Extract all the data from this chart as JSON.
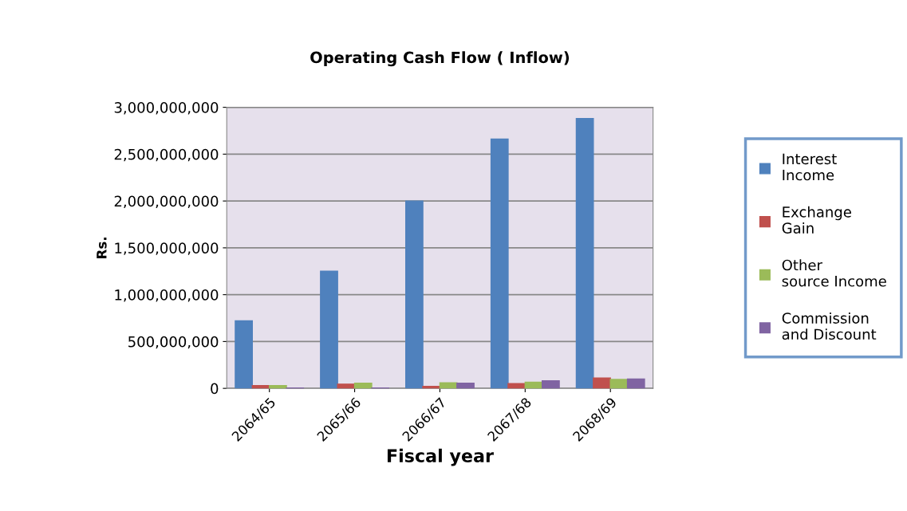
{
  "chart_data": {
    "type": "bar",
    "title": "Operating Cash Flow ( Inflow)",
    "xlabel": "Fiscal year",
    "ylabel": "Rs.",
    "categories": [
      "2064/65",
      "2065/66",
      "2066/67",
      "2067/68",
      "2068/69"
    ],
    "series": [
      {
        "name": "Interest Income",
        "color": "#4f81bd",
        "values": [
          720000000,
          1250000000,
          2000000000,
          2660000000,
          2880000000
        ]
      },
      {
        "name": "Exchange Gain",
        "color": "#c0504d",
        "values": [
          30000000,
          45000000,
          20000000,
          50000000,
          110000000
        ]
      },
      {
        "name": "Other source Income",
        "color": "#9bbb59",
        "values": [
          30000000,
          55000000,
          60000000,
          65000000,
          95000000
        ]
      },
      {
        "name": "Commission and Discount",
        "color": "#8064a2",
        "values": [
          5000000,
          5000000,
          55000000,
          80000000,
          100000000
        ]
      }
    ],
    "ylim": [
      0,
      3000000000
    ],
    "yticks": [
      {
        "value": 0,
        "label": "0"
      },
      {
        "value": 500000000,
        "label": "500,000,000"
      },
      {
        "value": 1000000000,
        "label": "1,000,000,000"
      },
      {
        "value": 1500000000,
        "label": "1,500,000,000"
      },
      {
        "value": 2000000000,
        "label": "2,000,000,000"
      },
      {
        "value": 2500000000,
        "label": "2,500,000,000"
      },
      {
        "value": 3000000000,
        "label": "3,000,000,000"
      }
    ],
    "grid": "y",
    "legend": "right"
  }
}
